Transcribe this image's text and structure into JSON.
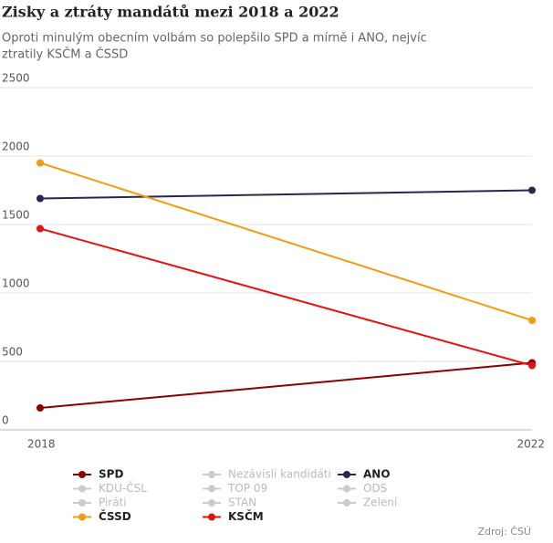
{
  "chart_data": {
    "type": "line",
    "title": "Zisky a ztráty mandátů mezi 2018 a 2022",
    "subtitle": [
      "Oproti minulým obecním volbám so polepšilo SPD a mírně i ANO, nejvíc",
      "ztratily KSČM a ČSSD"
    ],
    "categories": [
      "2018",
      "2022"
    ],
    "series": [
      {
        "name": "SPD",
        "color": "#8b0000",
        "values": [
          160,
          490
        ]
      },
      {
        "name": "Nezávislí kandidáti",
        "color": "#cccccc",
        "visible": false
      },
      {
        "name": "ANO",
        "color": "#26284f",
        "values": [
          1690,
          1750
        ]
      },
      {
        "name": "KDU-ČSL",
        "color": "#cccccc",
        "visible": false
      },
      {
        "name": "TOP 09",
        "color": "#cccccc",
        "visible": false
      },
      {
        "name": "ODS",
        "color": "#cccccc",
        "visible": false
      },
      {
        "name": "Piráti",
        "color": "#cccccc",
        "visible": false
      },
      {
        "name": "STAN",
        "color": "#cccccc",
        "visible": false
      },
      {
        "name": "Zelení",
        "color": "#cccccc",
        "visible": false
      },
      {
        "name": "ČSSD",
        "color": "#f39c12",
        "values": [
          1950,
          800
        ]
      },
      {
        "name": "KSČM",
        "color": "#e41414",
        "values": [
          1470,
          470
        ]
      }
    ],
    "ylim": [
      0,
      2500
    ],
    "yticks": [
      0,
      500,
      1000,
      1500,
      2000,
      2500
    ],
    "grid": true,
    "source": "Zdroj: ČSÚ"
  }
}
